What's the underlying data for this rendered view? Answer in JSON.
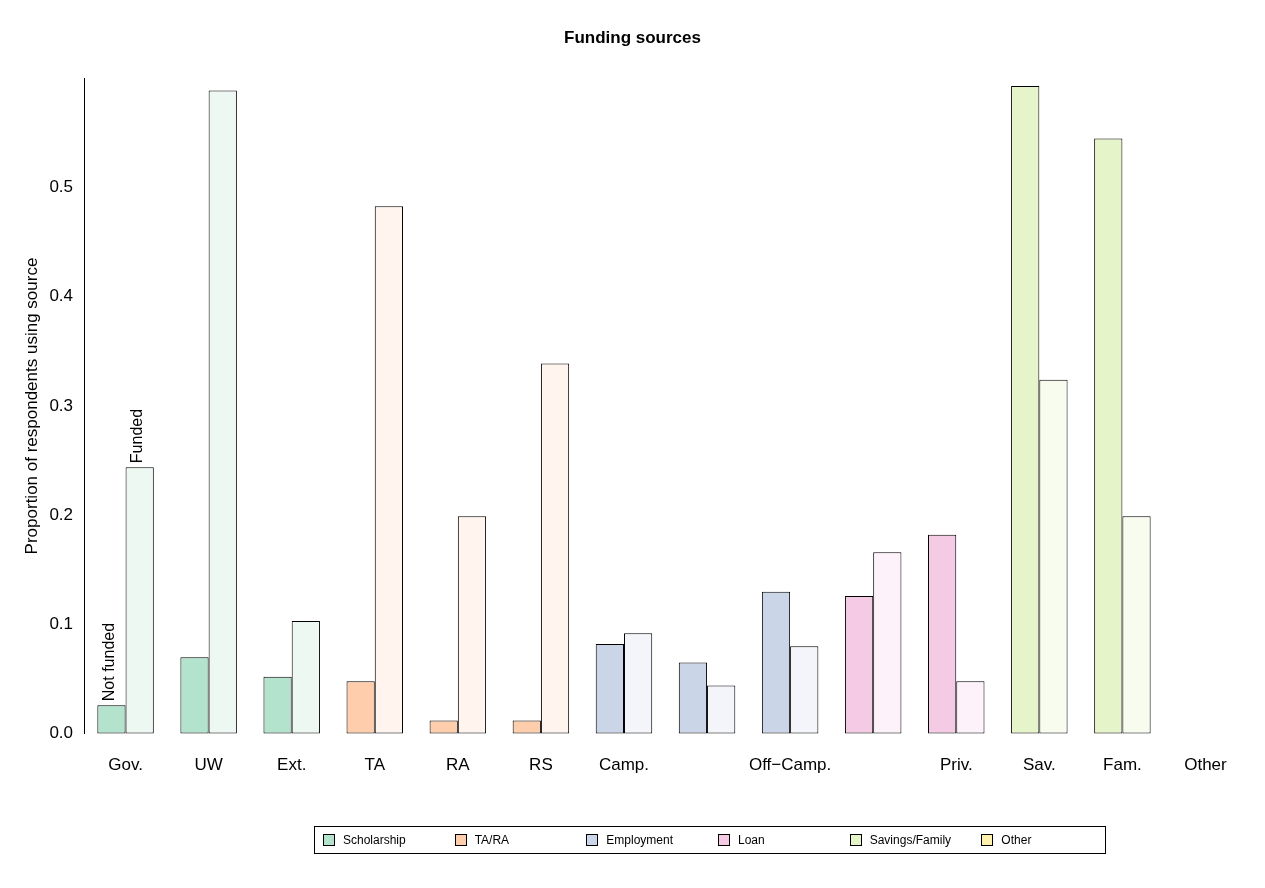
{
  "chart_data": {
    "type": "bar",
    "title": "Funding sources",
    "ylabel": "Proportion of respondents using source",
    "categories": [
      "Gov.",
      "UW",
      "Ext.",
      "TA",
      "RA",
      "RS",
      "Camp.",
      null,
      "Off−Camp.",
      null,
      "Priv.",
      "Sav.",
      "Fam.",
      "Other"
    ],
    "series": [
      {
        "name": "Not funded",
        "values": [
          0.026,
          0.07,
          0.052,
          0.048,
          0.012,
          0.012,
          0.082,
          0.065,
          0.13,
          0.126,
          0.182,
          0.593,
          0.545,
          0
        ],
        "colors": [
          "#b3e2cd",
          "#b3e2cd",
          "#b3e2cd",
          "#fdcdac",
          "#fdcdac",
          "#fdcdac",
          "#cbd5e8",
          "#cbd5e8",
          "#cbd5e8",
          "#f4cae4",
          "#f4cae4",
          "#e6f5c9",
          "#e6f5c9",
          "#fff2ae"
        ]
      },
      {
        "name": "Funded",
        "values": [
          0.244,
          0.589,
          0.103,
          0.483,
          0.199,
          0.339,
          0.092,
          0.044,
          0.08,
          0.166,
          0.048,
          0.324,
          0.199,
          0
        ],
        "colors": [
          "#eef8f3",
          "#eef8f3",
          "#eef8f3",
          "#fff5ee",
          "#fff5ee",
          "#fff5ee",
          "#f3f5fa",
          "#f3f5fa",
          "#f3f5fa",
          "#fdf2f9",
          "#fdf2f9",
          "#f8fcef",
          "#f8fcef",
          "#fffbe9"
        ]
      }
    ],
    "annotations": [
      "Scholarship",
      "TA/RA",
      "Employment",
      "Loan",
      "Savings/Family",
      "Other"
    ],
    "ylim": [
      0,
      0.6
    ],
    "yticks": [
      {
        "value": 0,
        "label": "0.0"
      },
      {
        "value": 0.1,
        "label": "0.1"
      },
      {
        "value": 0.2,
        "label": "0.2"
      },
      {
        "value": 0.3,
        "label": "0.3"
      },
      {
        "value": 0.4,
        "label": "0.4"
      },
      {
        "value": 0.5,
        "label": "0.5"
      }
    ],
    "grid": false,
    "legend": false
  }
}
